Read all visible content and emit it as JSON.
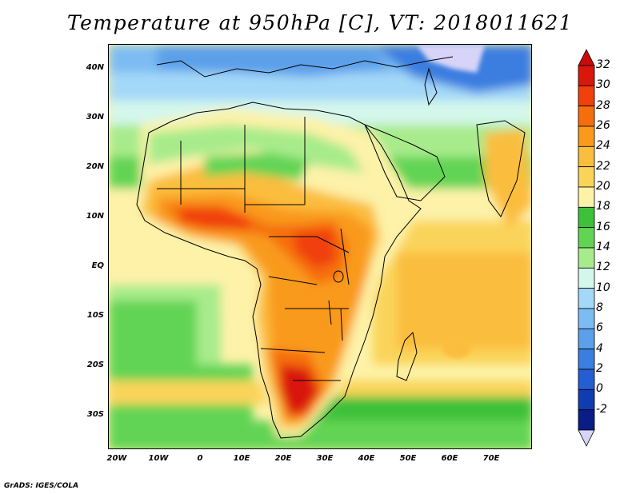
{
  "title": "Temperature at 950hPa [C], VT: 2018011621",
  "credit": "GrADS: IGES/COLA",
  "lat_ticks": [
    "40N",
    "30N",
    "20N",
    "10N",
    "EQ",
    "10S",
    "20S",
    "30S"
  ],
  "lon_ticks": [
    "20W",
    "10W",
    "0",
    "10E",
    "20E",
    "30E",
    "40E",
    "50E",
    "60E",
    "70E"
  ],
  "colorbar": {
    "labels": [
      "32",
      "30",
      "28",
      "26",
      "24",
      "22",
      "20",
      "18",
      "16",
      "14",
      "12",
      "10",
      "8",
      "6",
      "4",
      "2",
      "0",
      "-2"
    ],
    "colors": [
      "#d9170c",
      "#f0400c",
      "#f66e0c",
      "#f99a1c",
      "#fbbd3c",
      "#fad45a",
      "#fdf2a8",
      "#3ec13a",
      "#62d454",
      "#a8eb8c",
      "#d4f7ec",
      "#a4d8f8",
      "#7cbcf2",
      "#5ca0ea",
      "#3a7ee0",
      "#245ed2",
      "#103cb2",
      "#0a1c86"
    ],
    "over_color": "#c80c0c",
    "under_color": "#d8d4f8"
  },
  "map": {
    "ocean_color": "#d4f7ec",
    "land_color": "#fad45a"
  }
}
